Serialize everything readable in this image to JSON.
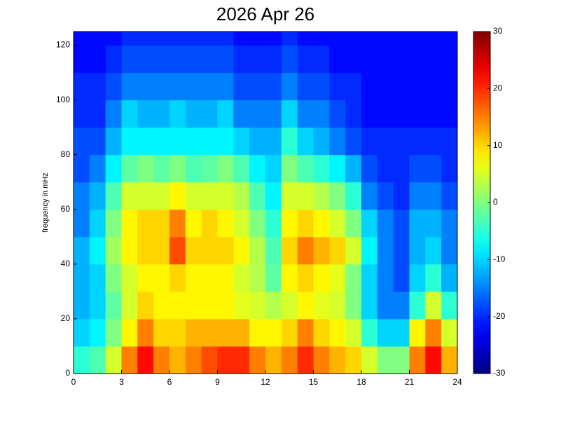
{
  "chart_data": {
    "type": "heatmap",
    "title": "2026 Apr 26",
    "ylabel": "frequency in mHz",
    "x_edges": [
      0,
      1,
      2,
      3,
      4,
      5,
      6,
      7,
      8,
      9,
      10,
      11,
      12,
      13,
      14,
      15,
      16,
      17,
      18,
      19,
      20,
      21,
      22,
      23,
      24
    ],
    "y_edges": [
      0,
      10,
      20,
      30,
      40,
      50,
      60,
      70,
      80,
      90,
      100,
      110,
      120,
      125
    ],
    "xlim": [
      0,
      24
    ],
    "xticks": [
      0,
      3,
      6,
      9,
      12,
      15,
      18,
      21,
      24
    ],
    "ylim": [
      0,
      125
    ],
    "yticks": [
      0,
      20,
      40,
      60,
      80,
      100,
      120
    ],
    "colormap": "jet",
    "clim": [
      -30,
      30
    ],
    "cticks": [
      -30,
      -20,
      -10,
      0,
      10,
      20,
      30
    ],
    "z": [
      [
        -5,
        -3,
        5,
        15,
        22,
        15,
        12,
        15,
        18,
        20,
        20,
        15,
        12,
        15,
        20,
        15,
        12,
        10,
        5,
        0,
        0,
        15,
        22,
        12
      ],
      [
        -10,
        -8,
        0,
        8,
        15,
        10,
        10,
        12,
        12,
        12,
        12,
        8,
        8,
        10,
        15,
        10,
        8,
        5,
        -5,
        -10,
        -10,
        8,
        15,
        5
      ],
      [
        -12,
        -10,
        -2,
        5,
        10,
        8,
        8,
        8,
        8,
        8,
        6,
        5,
        3,
        5,
        8,
        6,
        5,
        0,
        -10,
        -15,
        -15,
        -5,
        5,
        -5
      ],
      [
        -12,
        -10,
        0,
        5,
        8,
        8,
        10,
        8,
        8,
        8,
        5,
        3,
        -2,
        8,
        10,
        8,
        6,
        0,
        -10,
        -15,
        -18,
        -10,
        -5,
        -12
      ],
      [
        -12,
        -8,
        2,
        8,
        10,
        10,
        18,
        10,
        10,
        10,
        8,
        3,
        -3,
        10,
        15,
        12,
        10,
        5,
        -8,
        -15,
        -18,
        -12,
        -10,
        -15
      ],
      [
        -15,
        -10,
        0,
        8,
        10,
        10,
        15,
        8,
        10,
        8,
        5,
        0,
        -5,
        8,
        10,
        8,
        5,
        0,
        -10,
        -15,
        -18,
        -12,
        -12,
        -15
      ],
      [
        -15,
        -12,
        -3,
        5,
        5,
        5,
        8,
        5,
        5,
        5,
        3,
        -3,
        -8,
        5,
        5,
        3,
        0,
        -5,
        -15,
        -18,
        -20,
        -15,
        -15,
        -18
      ],
      [
        -18,
        -15,
        -8,
        -2,
        0,
        -2,
        0,
        -3,
        -2,
        0,
        -3,
        -8,
        -10,
        0,
        -3,
        -5,
        -8,
        -12,
        -18,
        -20,
        -20,
        -18,
        -18,
        -20
      ],
      [
        -18,
        -18,
        -12,
        -8,
        -8,
        -8,
        -8,
        -8,
        -8,
        -8,
        -10,
        -12,
        -12,
        -5,
        -10,
        -12,
        -15,
        -18,
        -20,
        -20,
        -20,
        -20,
        -20,
        -20
      ],
      [
        -20,
        -20,
        -15,
        -10,
        -12,
        -12,
        -10,
        -12,
        -12,
        -10,
        -15,
        -15,
        -15,
        -10,
        -15,
        -15,
        -18,
        -20,
        -22,
        -22,
        -22,
        -22,
        -22,
        -22
      ],
      [
        -20,
        -20,
        -18,
        -15,
        -15,
        -15,
        -15,
        -15,
        -15,
        -15,
        -18,
        -18,
        -18,
        -15,
        -18,
        -18,
        -20,
        -20,
        -22,
        -22,
        -22,
        -22,
        -22,
        -22
      ],
      [
        -22,
        -22,
        -20,
        -18,
        -18,
        -18,
        -18,
        -18,
        -18,
        -18,
        -20,
        -20,
        -20,
        -18,
        -20,
        -20,
        -22,
        -22,
        -22,
        -22,
        -22,
        -22,
        -22,
        -22
      ],
      [
        -22,
        -22,
        -22,
        -20,
        -20,
        -20,
        -20,
        -20,
        -20,
        -20,
        -22,
        -22,
        -22,
        -20,
        -22,
        -22,
        -22,
        -22,
        -22,
        -22,
        -22,
        -22,
        -22,
        -22
      ]
    ]
  }
}
